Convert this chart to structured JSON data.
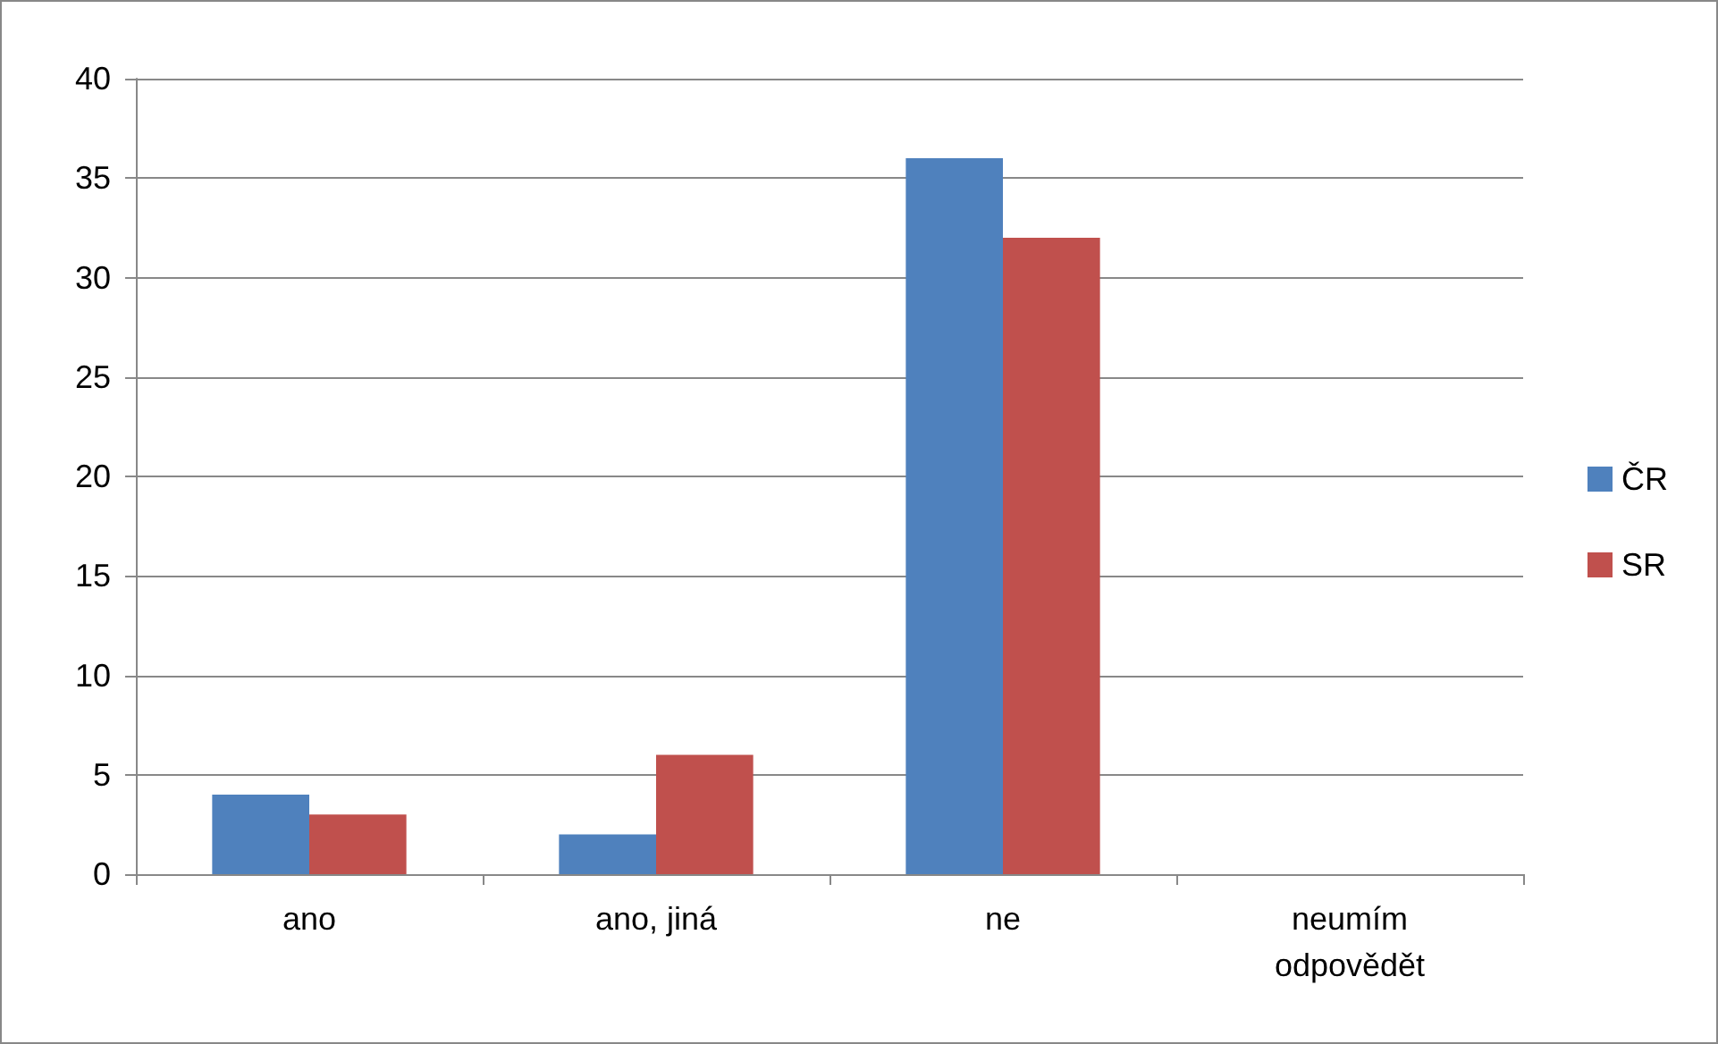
{
  "chart_data": {
    "type": "bar",
    "categories": [
      "ano",
      "ano, jiná",
      "ne",
      "neumím\nodpovědět"
    ],
    "series": [
      {
        "name": "ČR",
        "color": "#4f81bd",
        "values": [
          4,
          2,
          36,
          0
        ]
      },
      {
        "name": "SR",
        "color": "#c0504d",
        "values": [
          3,
          6,
          32,
          0
        ]
      }
    ],
    "ylim": [
      0,
      40
    ],
    "yticks": [
      0,
      5,
      10,
      15,
      20,
      25,
      30,
      35,
      40
    ],
    "grid": "y",
    "legend": "right"
  }
}
